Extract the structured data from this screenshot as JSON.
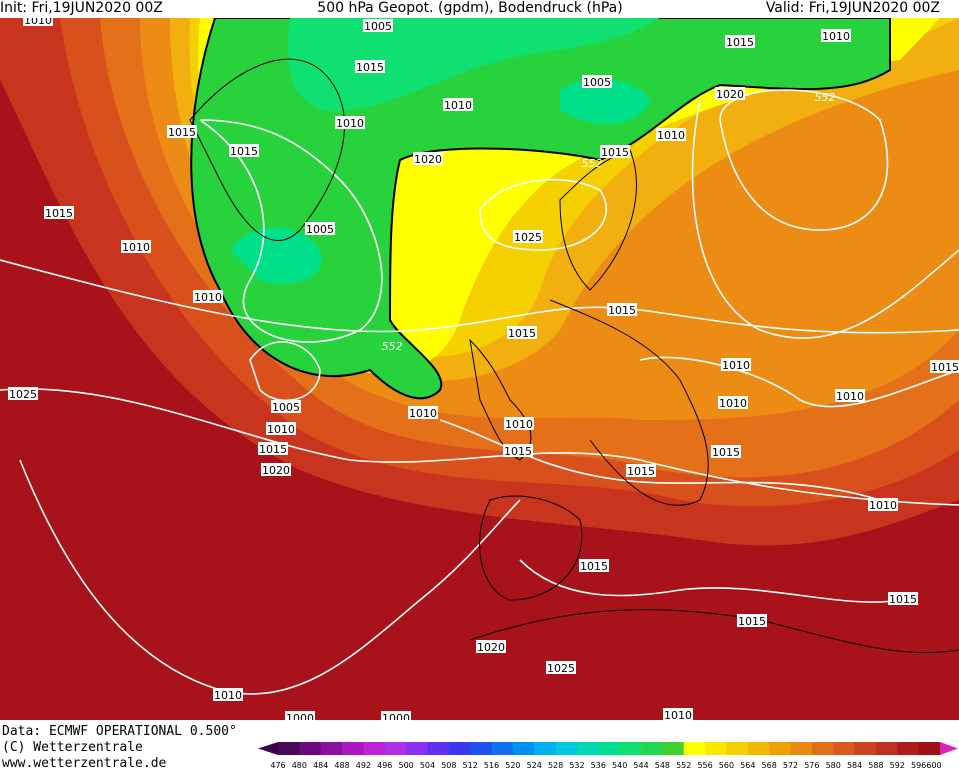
{
  "header": {
    "init": "Init: Fri,19JUN2020 00Z",
    "title": "500 hPa Geopot. (gpdm), Bodendruck (hPa)",
    "valid": "Valid: Fri,19JUN2020 00Z"
  },
  "isobar_labels": [
    "1010",
    "1005",
    "1015",
    "1010",
    "1015",
    "1005",
    "1015",
    "1010",
    "1010",
    "1020",
    "1015",
    "1015",
    "552",
    "1020",
    "1010",
    "552",
    "1015",
    "1010",
    "1005",
    "1025",
    "1010",
    "1015",
    "552",
    "1015",
    "1015",
    "1010",
    "1010",
    "1010",
    "1000",
    "1010",
    "1025",
    "1005",
    "1010",
    "1015",
    "1020",
    "1010",
    "1015",
    "1015",
    "1015",
    "1010",
    "1015",
    "1015",
    "1015",
    "1020",
    "1010",
    "1025",
    "1000",
    "1010"
  ],
  "legend": {
    "levels": [
      476,
      480,
      484,
      488,
      492,
      496,
      500,
      504,
      508,
      512,
      516,
      520,
      524,
      528,
      532,
      536,
      540,
      544,
      548,
      552,
      556,
      560,
      564,
      568,
      572,
      576,
      580,
      584,
      588,
      592,
      596,
      600
    ],
    "colors": [
      "#4a0a5c",
      "#6a0a80",
      "#8a10a0",
      "#a818c0",
      "#c020d8",
      "#b030e8",
      "#8a30f0",
      "#6030f0",
      "#3838f0",
      "#2050f0",
      "#1070f0",
      "#0090f0",
      "#00b0f0",
      "#00c8e0",
      "#00d8b8",
      "#00e090",
      "#10e070",
      "#20d850",
      "#40d030",
      "#ffff00",
      "#f8e800",
      "#f5d000",
      "#f0b800",
      "#eea000",
      "#e88a10",
      "#e07018",
      "#d85a1c",
      "#cc441e",
      "#c03020",
      "#b01c1c",
      "#a00f18"
    ]
  },
  "footer": {
    "data": "Data: ECMWF OPERATIONAL 0.500°",
    "copyright": "(C) Wetterzentrale",
    "url": "www.wetterzentrale.de"
  }
}
